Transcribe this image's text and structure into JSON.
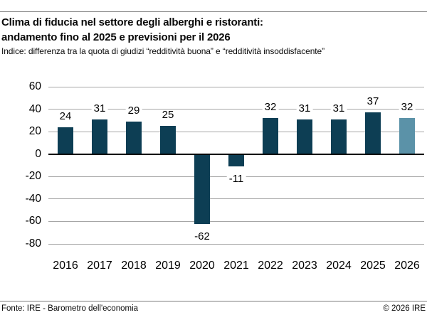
{
  "page": {
    "title_line1": "Clima di fiducia nel settore degli alberghi e ristoranti:",
    "title_line2": "andamento fino al 2025 e previsioni per il 2026",
    "subtitle": "Indice: differenza tra la quota di giudizi “redditività buona” e “redditività insoddisfacente”",
    "footer_source": "Fonte: IRE - Barometro dell'economia",
    "footer_copyright": "© 2026 IRE"
  },
  "colors": {
    "bar": "#0d3e54",
    "bar_forecast": "#5b92a8",
    "gridline": "#a6a6a6",
    "zero_line": "#000000",
    "rule": "#7d7d7d",
    "text": "#000000"
  },
  "chart_data": {
    "type": "bar",
    "title": "Clima di fiducia nel settore degli alberghi e ristoranti: andamento fino al 2025 e previsioni per il 2026",
    "subtitle": "Indice: differenza tra la quota di giudizi “redditività buona” e “redditività insoddisfacente”",
    "categories": [
      "2016",
      "2017",
      "2018",
      "2019",
      "2020",
      "2021",
      "2022",
      "2023",
      "2024",
      "2025",
      "2026"
    ],
    "values": [
      24,
      31,
      29,
      25,
      -62,
      -11,
      32,
      31,
      31,
      37,
      32
    ],
    "data_labels": [
      "24",
      "31",
      "29",
      "25",
      "-62",
      "-11",
      "32",
      "31",
      "31",
      "37",
      "32"
    ],
    "forecast_index": 10,
    "xlabel": "",
    "ylabel": "",
    "y_ticks": [
      60,
      40,
      20,
      0,
      -20,
      -40,
      -60,
      -80
    ],
    "ylim": [
      -80,
      60
    ],
    "grid": true,
    "legend": "none",
    "bar_color": "#0d3e54",
    "forecast_bar_color": "#5b92a8"
  }
}
